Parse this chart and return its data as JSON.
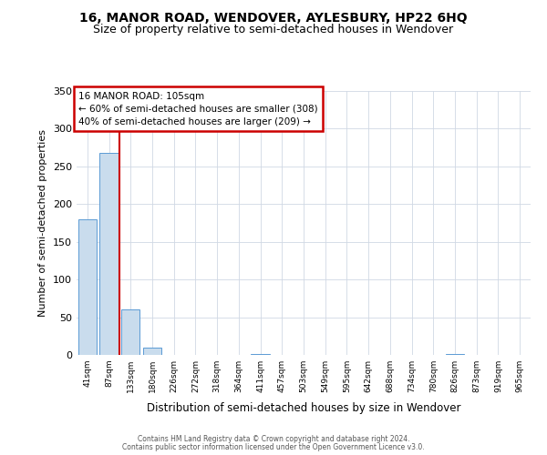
{
  "title": "16, MANOR ROAD, WENDOVER, AYLESBURY, HP22 6HQ",
  "subtitle": "Size of property relative to semi-detached houses in Wendover",
  "xlabel": "Distribution of semi-detached houses by size in Wendover",
  "ylabel": "Number of semi-detached properties",
  "bin_labels": [
    "41sqm",
    "87sqm",
    "133sqm",
    "180sqm",
    "226sqm",
    "272sqm",
    "318sqm",
    "364sqm",
    "411sqm",
    "457sqm",
    "503sqm",
    "549sqm",
    "595sqm",
    "642sqm",
    "688sqm",
    "734sqm",
    "780sqm",
    "826sqm",
    "873sqm",
    "919sqm",
    "965sqm"
  ],
  "bar_heights": [
    180,
    268,
    60,
    10,
    0,
    0,
    0,
    0,
    1,
    0,
    0,
    0,
    0,
    0,
    0,
    0,
    0,
    1,
    0,
    0,
    0
  ],
  "bar_color": "#c9dced",
  "bar_edge_color": "#5b9bd5",
  "red_line_color": "#cc0000",
  "red_line_x": 1.5,
  "annotation_label": "16 MANOR ROAD: 105sqm",
  "annotation_line1": "← 60% of semi-detached houses are smaller (308)",
  "annotation_line2": "40% of semi-detached houses are larger (209) →",
  "annotation_box_facecolor": "#ffffff",
  "annotation_box_edgecolor": "#cc0000",
  "ylim": [
    0,
    350
  ],
  "yticks": [
    0,
    50,
    100,
    150,
    200,
    250,
    300,
    350
  ],
  "footer_line1": "Contains HM Land Registry data © Crown copyright and database right 2024.",
  "footer_line2": "Contains public sector information licensed under the Open Government Licence v3.0.",
  "background_color": "#ffffff",
  "grid_color": "#d0d8e4",
  "title_fontsize": 10,
  "subtitle_fontsize": 9
}
